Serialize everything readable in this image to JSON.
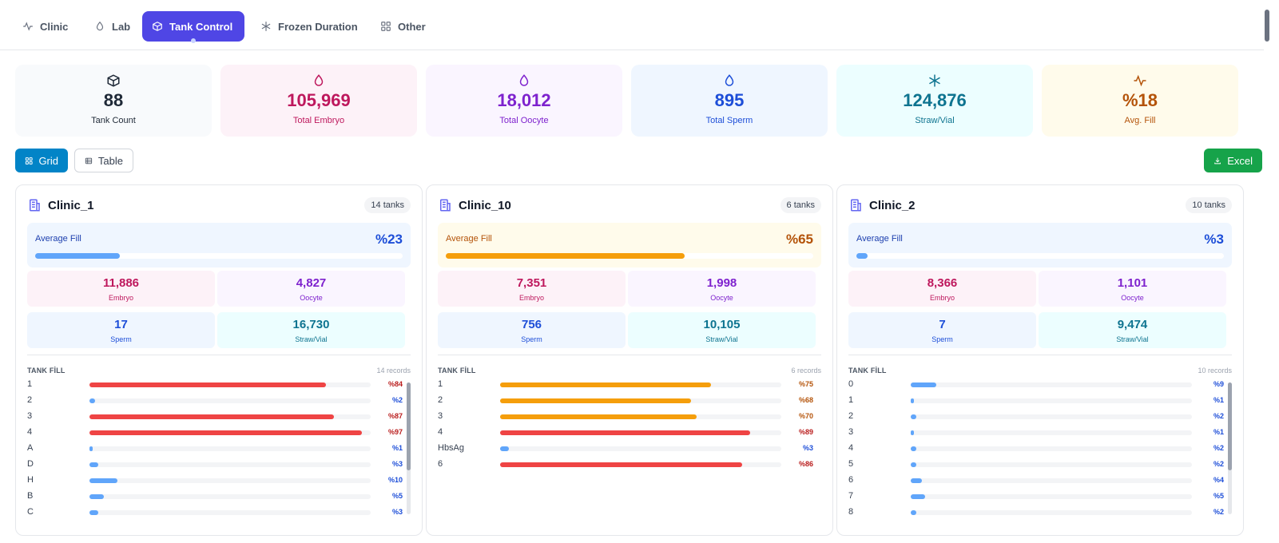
{
  "tabs": [
    {
      "label": "Clinic",
      "icon": "activity-icon",
      "active": false
    },
    {
      "label": "Lab",
      "icon": "drop-icon",
      "active": false
    },
    {
      "label": "Tank Control",
      "icon": "box-icon",
      "active": true
    },
    {
      "label": "Frozen Duration",
      "icon": "snowflake-icon",
      "active": false
    },
    {
      "label": "Other",
      "icon": "grid-icon",
      "active": false
    }
  ],
  "stats": [
    {
      "value": "88",
      "label": "Tank Count",
      "icon": "box-icon",
      "bg": "#f8fafc",
      "color": "#1f2937"
    },
    {
      "value": "105,969",
      "label": "Total Embryo",
      "icon": "drop-icon",
      "bg": "#fdf2f8",
      "color": "#be185d"
    },
    {
      "value": "18,012",
      "label": "Total Oocyte",
      "icon": "drop-icon",
      "bg": "#faf5ff",
      "color": "#7e22ce"
    },
    {
      "value": "895",
      "label": "Total Sperm",
      "icon": "drop-icon",
      "bg": "#eff6ff",
      "color": "#1d4ed8"
    },
    {
      "value": "124,876",
      "label": "Straw/Vial",
      "icon": "snowflake-icon",
      "bg": "#ecfeff",
      "color": "#0e7490"
    },
    {
      "value": "%18",
      "label": "Avg. Fill",
      "icon": "activity-icon",
      "bg": "#fffbeb",
      "color": "#b45309"
    }
  ],
  "view": {
    "grid_label": "Grid",
    "table_label": "Table",
    "excel_label": "Excel"
  },
  "labels": {
    "average_fill": "Average Fill",
    "tank_fill": "TANK FİLL",
    "embryo": "Embryo",
    "oocyte": "Oocyte",
    "sperm": "Sperm",
    "straw": "Straw/Vial"
  },
  "colors": {
    "accent": "#4f46e5",
    "blue": "#60a5fa",
    "orange": "#f59e0b",
    "red": "#ef4444",
    "excel": "#16a34a",
    "grid_btn": "#0284c7"
  },
  "clinics": [
    {
      "name": "Clinic_1",
      "tanks": "14 tanks",
      "avg_fill": "%23",
      "avg_fill_value": 23,
      "avg_theme": "blue",
      "embryo": "11,886",
      "oocyte": "4,827",
      "sperm": "17",
      "straw": "16,730",
      "records": "14 records",
      "scrollbar": true,
      "rows": [
        {
          "label": "1",
          "pct": "%84",
          "value": 84
        },
        {
          "label": "2",
          "pct": "%2",
          "value": 2
        },
        {
          "label": "3",
          "pct": "%87",
          "value": 87
        },
        {
          "label": "4",
          "pct": "%97",
          "value": 97
        },
        {
          "label": "A",
          "pct": "%1",
          "value": 1
        },
        {
          "label": "D",
          "pct": "%3",
          "value": 3
        },
        {
          "label": "H",
          "pct": "%10",
          "value": 10
        },
        {
          "label": "B",
          "pct": "%5",
          "value": 5
        },
        {
          "label": "C",
          "pct": "%3",
          "value": 3
        }
      ]
    },
    {
      "name": "Clinic_10",
      "tanks": "6 tanks",
      "avg_fill": "%65",
      "avg_fill_value": 65,
      "avg_theme": "orange",
      "embryo": "7,351",
      "oocyte": "1,998",
      "sperm": "756",
      "straw": "10,105",
      "records": "6 records",
      "scrollbar": false,
      "rows": [
        {
          "label": "1",
          "pct": "%75",
          "value": 75
        },
        {
          "label": "2",
          "pct": "%68",
          "value": 68
        },
        {
          "label": "3",
          "pct": "%70",
          "value": 70
        },
        {
          "label": "4",
          "pct": "%89",
          "value": 89
        },
        {
          "label": "HbsAg",
          "pct": "%3",
          "value": 3
        },
        {
          "label": "6",
          "pct": "%86",
          "value": 86
        }
      ]
    },
    {
      "name": "Clinic_2",
      "tanks": "10 tanks",
      "avg_fill": "%3",
      "avg_fill_value": 3,
      "avg_theme": "blue",
      "embryo": "8,366",
      "oocyte": "1,101",
      "sperm": "7",
      "straw": "9,474",
      "records": "10 records",
      "scrollbar": true,
      "rows": [
        {
          "label": "0",
          "pct": "%9",
          "value": 9
        },
        {
          "label": "1",
          "pct": "%1",
          "value": 1
        },
        {
          "label": "2",
          "pct": "%2",
          "value": 2
        },
        {
          "label": "3",
          "pct": "%1",
          "value": 1
        },
        {
          "label": "4",
          "pct": "%2",
          "value": 2
        },
        {
          "label": "5",
          "pct": "%2",
          "value": 2
        },
        {
          "label": "6",
          "pct": "%4",
          "value": 4
        },
        {
          "label": "7",
          "pct": "%5",
          "value": 5
        },
        {
          "label": "8",
          "pct": "%2",
          "value": 2
        }
      ]
    }
  ]
}
